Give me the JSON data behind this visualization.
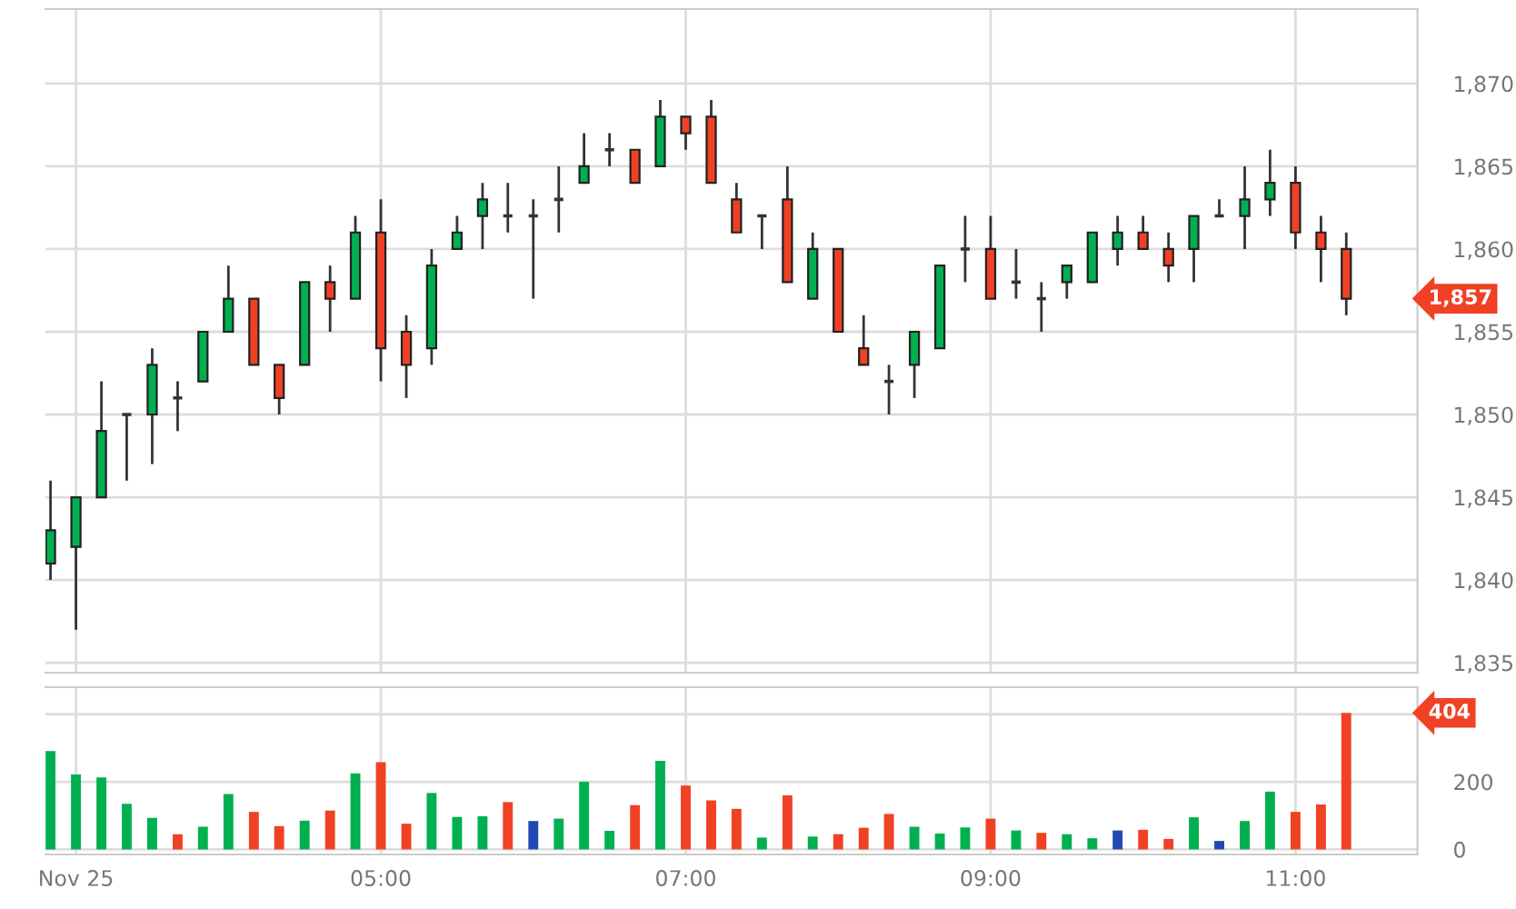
{
  "chart_data": [
    {
      "type": "candlestick",
      "x": [
        2.833,
        3,
        3.167,
        3.333,
        3.5,
        3.667,
        3.833,
        4,
        4.167,
        4.333,
        4.5,
        4.667,
        4.833,
        5,
        5.167,
        5.333,
        5.5,
        5.667,
        5.833,
        6,
        6.167,
        6.333,
        6.5,
        6.667,
        6.833,
        7,
        7.167,
        7.333,
        7.5,
        7.667,
        7.833,
        8,
        8.167,
        8.333,
        8.5,
        8.667,
        8.833,
        9,
        9.167,
        9.333,
        9.5,
        9.667,
        9.833,
        10,
        10.167,
        10.333,
        10.5,
        10.667,
        10.833,
        11,
        11.167,
        11.333
      ],
      "ohlc": [
        [
          1841,
          1846,
          1840,
          1843
        ],
        [
          1842,
          1845,
          1837,
          1845
        ],
        [
          1845,
          1852,
          1845,
          1849
        ],
        [
          1850,
          1850,
          1846,
          1850
        ],
        [
          1850,
          1854,
          1847,
          1853
        ],
        [
          1851,
          1852,
          1849,
          1851
        ],
        [
          1852,
          1855,
          1852,
          1855
        ],
        [
          1855,
          1859,
          1855,
          1857
        ],
        [
          1857,
          1857,
          1853,
          1853
        ],
        [
          1853,
          1853,
          1850,
          1851
        ],
        [
          1853,
          1858,
          1853,
          1858
        ],
        [
          1858,
          1859,
          1855,
          1857
        ],
        [
          1857,
          1862,
          1857,
          1861
        ],
        [
          1861,
          1863,
          1852,
          1854
        ],
        [
          1855,
          1856,
          1851,
          1853
        ],
        [
          1854,
          1860,
          1853,
          1859
        ],
        [
          1860,
          1862,
          1860,
          1861
        ],
        [
          1862,
          1864,
          1860,
          1863
        ],
        [
          1862,
          1864,
          1861,
          1862
        ],
        [
          1862,
          1863,
          1857,
          1862
        ],
        [
          1863,
          1865,
          1861,
          1863
        ],
        [
          1864,
          1867,
          1864,
          1865
        ],
        [
          1866,
          1867,
          1865,
          1866
        ],
        [
          1866,
          1866,
          1864,
          1864
        ],
        [
          1865,
          1869,
          1865,
          1868
        ],
        [
          1868,
          1868,
          1866,
          1867
        ],
        [
          1868,
          1869,
          1864,
          1864
        ],
        [
          1863,
          1864,
          1861,
          1861
        ],
        [
          1862,
          1862,
          1860,
          1862
        ],
        [
          1863,
          1865,
          1858,
          1858
        ],
        [
          1857,
          1861,
          1857,
          1860
        ],
        [
          1860,
          1860,
          1855,
          1855
        ],
        [
          1854,
          1856,
          1853,
          1853
        ],
        [
          1852,
          1853,
          1850,
          1852
        ],
        [
          1853,
          1855,
          1851,
          1855
        ],
        [
          1854,
          1859,
          1854,
          1859
        ],
        [
          1860,
          1862,
          1858,
          1860
        ],
        [
          1860,
          1862,
          1857,
          1857
        ],
        [
          1858,
          1860,
          1857,
          1858
        ],
        [
          1857,
          1858,
          1855,
          1857
        ],
        [
          1858,
          1859,
          1857,
          1859
        ],
        [
          1858,
          1861,
          1858,
          1861
        ],
        [
          1860,
          1862,
          1859,
          1861
        ],
        [
          1861,
          1862,
          1860,
          1860
        ],
        [
          1860,
          1861,
          1858,
          1859
        ],
        [
          1860,
          1862,
          1858,
          1862
        ],
        [
          1862,
          1863,
          1862,
          1862
        ],
        [
          1862,
          1865,
          1860,
          1863
        ],
        [
          1863,
          1866,
          1862,
          1864
        ],
        [
          1864,
          1865,
          1860,
          1861
        ],
        [
          1861,
          1862,
          1858,
          1860
        ],
        [
          1860,
          1861,
          1856,
          1857
        ]
      ],
      "colors": [
        "#00b050",
        "#00b050",
        "#00b050",
        "#333333",
        "#00b050",
        "#333333",
        "#00b050",
        "#00b050",
        "#f04125",
        "#f04125",
        "#00b050",
        "#f04125",
        "#00b050",
        "#f04125",
        "#f04125",
        "#00b050",
        "#00b050",
        "#00b050",
        "#333333",
        "#333333",
        "#333333",
        "#00b050",
        "#333333",
        "#f04125",
        "#00b050",
        "#f04125",
        "#f04125",
        "#f04125",
        "#333333",
        "#f04125",
        "#00b050",
        "#f04125",
        "#f04125",
        "#333333",
        "#00b050",
        "#00b050",
        "#333333",
        "#f04125",
        "#333333",
        "#333333",
        "#00b050",
        "#00b050",
        "#00b050",
        "#f04125",
        "#f04125",
        "#00b050",
        "#333333",
        "#00b050",
        "#00b050",
        "#f04125",
        "#f04125",
        "#f04125"
      ],
      "xlim": [
        2.8,
        11.8
      ],
      "xticks": [
        {
          "value": 3,
          "label": null
        },
        {
          "value": 5,
          "label": null
        },
        {
          "value": 7,
          "label": null
        },
        {
          "value": 9,
          "label": null
        },
        {
          "value": 11,
          "label": null
        }
      ],
      "ylim": [
        1834.4,
        1874.5
      ],
      "yticks": [
        {
          "value": 1835,
          "label": "1,835"
        },
        {
          "value": 1840,
          "label": "1,840"
        },
        {
          "value": 1845,
          "label": "1,845"
        },
        {
          "value": 1850,
          "label": "1,850"
        },
        {
          "value": 1855,
          "label": "1,855"
        },
        {
          "value": 1860,
          "label": "1,860"
        },
        {
          "value": 1865,
          "label": "1,865"
        },
        {
          "value": 1870,
          "label": "1,870"
        }
      ],
      "tick_labels": "y",
      "grid": true,
      "annotations": [
        "1,857"
      ]
    },
    {
      "type": "bar",
      "x": [
        2.833,
        3,
        3.167,
        3.333,
        3.5,
        3.667,
        3.833,
        4,
        4.167,
        4.333,
        4.5,
        4.667,
        4.833,
        5,
        5.167,
        5.333,
        5.5,
        5.667,
        5.833,
        6,
        6.167,
        6.333,
        6.5,
        6.667,
        6.833,
        7,
        7.167,
        7.333,
        7.5,
        7.667,
        7.833,
        8,
        8.167,
        8.333,
        8.5,
        8.667,
        8.833,
        9,
        9.167,
        9.333,
        9.5,
        9.667,
        9.833,
        10,
        10.167,
        10.333,
        10.5,
        10.667,
        10.833,
        11,
        11.167,
        11.333
      ],
      "values": [
        291,
        222,
        213,
        135,
        93,
        45,
        67,
        164,
        111,
        69,
        85,
        115,
        225,
        258,
        76,
        167,
        96,
        98,
        140,
        84,
        91,
        200,
        55,
        131,
        262,
        189,
        145,
        120,
        35,
        160,
        38,
        45,
        64,
        105,
        67,
        47,
        65,
        91,
        56,
        49,
        45,
        33,
        56,
        58,
        31,
        95,
        25,
        84,
        171,
        111,
        133,
        404
      ],
      "colors": [
        "#00b050",
        "#00b050",
        "#00b050",
        "#00b050",
        "#00b050",
        "#f04125",
        "#00b050",
        "#00b050",
        "#f04125",
        "#f04125",
        "#00b050",
        "#f04125",
        "#00b050",
        "#f04125",
        "#f04125",
        "#00b050",
        "#00b050",
        "#00b050",
        "#f04125",
        "#2249b3",
        "#00b050",
        "#00b050",
        "#00b050",
        "#f04125",
        "#00b050",
        "#f04125",
        "#f04125",
        "#f04125",
        "#00b050",
        "#f04125",
        "#00b050",
        "#f04125",
        "#f04125",
        "#f04125",
        "#00b050",
        "#00b050",
        "#00b050",
        "#f04125",
        "#00b050",
        "#f04125",
        "#00b050",
        "#00b050",
        "#2249b3",
        "#f04125",
        "#f04125",
        "#00b050",
        "#2249b3",
        "#00b050",
        "#00b050",
        "#f04125",
        "#f04125",
        "#f04125"
      ],
      "xlim": [
        2.8,
        11.8
      ],
      "xticks": [
        {
          "value": 3,
          "label": "Nov 25"
        },
        {
          "value": 5,
          "label": "05:00"
        },
        {
          "value": 7,
          "label": "07:00"
        },
        {
          "value": 9,
          "label": "09:00"
        },
        {
          "value": 11,
          "label": "11:00"
        }
      ],
      "ylim": [
        -15,
        480
      ],
      "yticks": [
        0,
        200,
        {
          "value": 400,
          "label": null
        }
      ],
      "grid": true,
      "annotations": [
        "404"
      ]
    }
  ]
}
